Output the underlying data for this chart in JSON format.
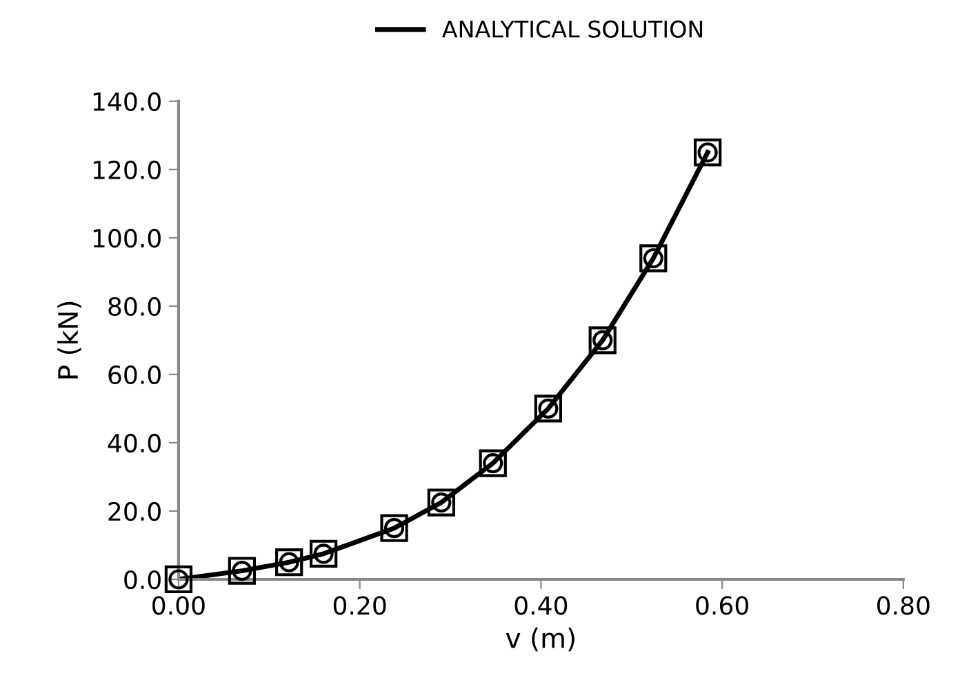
{
  "chart_data": {
    "type": "line",
    "xlabel": "v (m)",
    "ylabel": "P (kN)",
    "xlim": [
      0,
      0.8
    ],
    "ylim": [
      0,
      140
    ],
    "xticks": [
      {
        "value": 0,
        "label": "0.00"
      },
      {
        "value": 0.2,
        "label": "0.20"
      },
      {
        "value": 0.4,
        "label": "0.40"
      },
      {
        "value": 0.6,
        "label": "0.60"
      },
      {
        "value": 0.8,
        "label": "0.80"
      }
    ],
    "yticks": [
      {
        "value": 0,
        "label": "0.0"
      },
      {
        "value": 20,
        "label": "20.0"
      },
      {
        "value": 40,
        "label": "40.0"
      },
      {
        "value": 60,
        "label": "60.0"
      },
      {
        "value": 80,
        "label": "80.0"
      },
      {
        "value": 100,
        "label": "100.0"
      },
      {
        "value": 120,
        "label": "120.0"
      },
      {
        "value": 140,
        "label": "140.0"
      }
    ],
    "grid": false,
    "legend": "top",
    "series": [
      {
        "name": "ANALYTICAL SOLUTION",
        "color": "#000000",
        "marker": "none",
        "line_style": "solid",
        "x": [
          0,
          0.07,
          0.122,
          0.16,
          0.238,
          0.29,
          0.347,
          0.408,
          0.468,
          0.524,
          0.584
        ],
        "values": [
          0,
          2.5,
          5,
          7.5,
          15,
          22.5,
          34,
          50,
          70,
          94,
          125
        ]
      },
      {
        "type": "scatter",
        "color": "#000000",
        "marker": "circle",
        "x": [
          0,
          0.07,
          0.122,
          0.16,
          0.238,
          0.29,
          0.347,
          0.408,
          0.468,
          0.524,
          0.584
        ],
        "values": [
          0,
          2.5,
          5,
          7.5,
          15,
          22.5,
          34,
          50,
          70,
          94,
          125
        ]
      },
      {
        "type": "scatter",
        "color": "#000000",
        "marker": "square",
        "x": [
          0,
          0.07,
          0.122,
          0.16,
          0.238,
          0.29,
          0.347,
          0.408,
          0.468,
          0.524,
          0.584
        ],
        "values": [
          0,
          2.5,
          5,
          7.5,
          15,
          22.5,
          34,
          50,
          70,
          94,
          125
        ]
      }
    ]
  }
}
